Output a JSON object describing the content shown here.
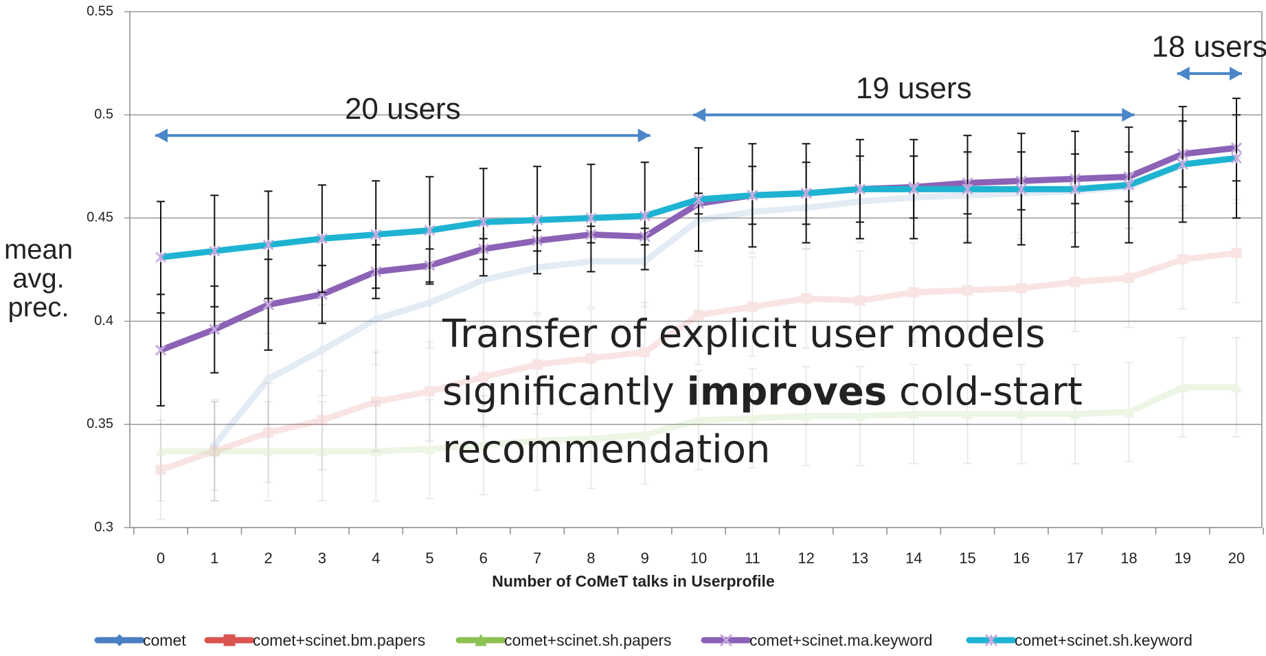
{
  "chart_data": {
    "type": "line",
    "xlabel": "Number of CoMeT talks in Userprofile",
    "ylabel": [
      "mean",
      "avg.",
      "prec."
    ],
    "categories": [
      0,
      1,
      2,
      3,
      4,
      5,
      6,
      7,
      8,
      9,
      10,
      11,
      12,
      13,
      14,
      15,
      16,
      17,
      18,
      19,
      20
    ],
    "ylim": [
      0.3,
      0.55
    ],
    "yticks": [
      0.3,
      0.35,
      0.4,
      0.45,
      0.5,
      0.55
    ],
    "grid": true,
    "legend": "bottom",
    "series": [
      {
        "name": "comet",
        "color": "#4a7fc1",
        "marker": "diamond",
        "opacity": 0.15,
        "values": [
          null,
          0.34,
          0.372,
          0.386,
          0.401,
          0.409,
          0.42,
          0.426,
          0.429,
          0.429,
          0.449,
          0.453,
          0.455,
          0.458,
          0.46,
          0.461,
          0.462,
          0.463,
          0.465,
          0.476,
          0.479
        ],
        "errors": [
          null,
          0.022,
          0.022,
          0.022,
          0.022,
          0.022,
          0.022,
          0.022,
          0.022,
          0.022,
          0.02,
          0.02,
          0.02,
          0.02,
          0.02,
          0.02,
          0.02,
          0.02,
          0.02,
          0.02,
          0.02
        ]
      },
      {
        "name": "comet+scinet.bm.papers",
        "color": "#d9534f",
        "marker": "square",
        "opacity": 0.15,
        "values": [
          0.328,
          0.337,
          0.346,
          0.352,
          0.361,
          0.366,
          0.373,
          0.379,
          0.382,
          0.385,
          0.403,
          0.407,
          0.411,
          0.41,
          0.414,
          0.415,
          0.416,
          0.419,
          0.421,
          0.43,
          0.433
        ],
        "errors": [
          0.024,
          0.024,
          0.024,
          0.024,
          0.024,
          0.024,
          0.024,
          0.024,
          0.024,
          0.024,
          0.024,
          0.024,
          0.024,
          0.024,
          0.024,
          0.024,
          0.024,
          0.024,
          0.024,
          0.024,
          0.024
        ]
      },
      {
        "name": "comet+scinet.sh.papers",
        "color": "#8cc152",
        "marker": "triangle",
        "opacity": 0.15,
        "values": [
          0.337,
          0.337,
          0.337,
          0.337,
          0.337,
          0.338,
          0.34,
          0.342,
          0.343,
          0.345,
          0.352,
          0.353,
          0.354,
          0.354,
          0.355,
          0.355,
          0.355,
          0.355,
          0.356,
          0.368,
          0.368
        ],
        "errors": [
          0.024,
          0.024,
          0.024,
          0.024,
          0.024,
          0.024,
          0.024,
          0.024,
          0.024,
          0.024,
          0.024,
          0.024,
          0.024,
          0.024,
          0.024,
          0.024,
          0.024,
          0.024,
          0.024,
          0.024,
          0.024
        ]
      },
      {
        "name": "comet+scinet.ma.keyword",
        "color": "#8b62b5",
        "marker": "x",
        "opacity": 1,
        "values": [
          0.386,
          0.396,
          0.408,
          0.413,
          0.424,
          0.427,
          0.435,
          0.439,
          0.442,
          0.441,
          0.457,
          0.461,
          0.462,
          0.464,
          0.465,
          0.467,
          0.468,
          0.469,
          0.47,
          0.481,
          0.484
        ],
        "errors": [
          0.027,
          0.021,
          0.022,
          0.014,
          0.013,
          0.008,
          0.005,
          0.005,
          0.004,
          0.004,
          0.005,
          0.014,
          0.015,
          0.016,
          0.015,
          0.015,
          0.014,
          0.012,
          0.012,
          0.016,
          0.016
        ]
      },
      {
        "name": "comet+scinet.sh.keyword",
        "color": "#1fb3d2",
        "marker": "star",
        "opacity": 1,
        "values": [
          0.431,
          0.434,
          0.437,
          0.44,
          0.442,
          0.444,
          0.448,
          0.449,
          0.45,
          0.451,
          0.459,
          0.461,
          0.462,
          0.464,
          0.464,
          0.464,
          0.464,
          0.464,
          0.466,
          0.476,
          0.479
        ],
        "errors": [
          0.027,
          0.027,
          0.026,
          0.026,
          0.026,
          0.026,
          0.026,
          0.026,
          0.026,
          0.026,
          0.025,
          0.025,
          0.024,
          0.024,
          0.024,
          0.026,
          0.027,
          0.028,
          0.028,
          0.028,
          0.029
        ]
      }
    ],
    "annotations": [
      {
        "text": "20 users",
        "from": 0,
        "to": 9,
        "y": 0.49
      },
      {
        "text": "19 users",
        "from": 10,
        "to": 18,
        "y": 0.5
      },
      {
        "text": "18 users",
        "from": 19,
        "to": 20,
        "y": 0.52
      }
    ],
    "message": [
      [
        "Transfer of explicit user models"
      ],
      [
        "significantly ",
        "improves",
        " cold-start"
      ],
      [
        "recommendation"
      ]
    ]
  }
}
